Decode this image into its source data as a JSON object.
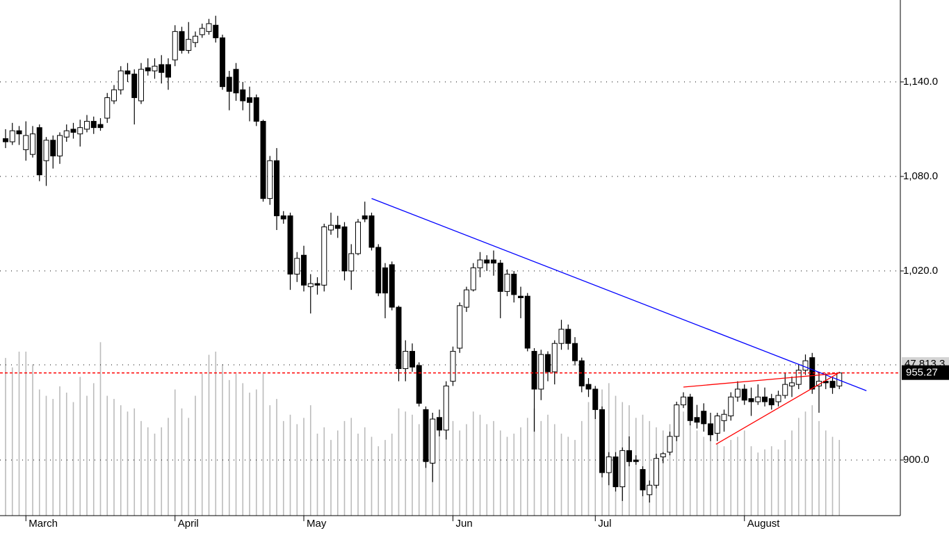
{
  "chart_data": {
    "type": "candlestick",
    "categories": [
      null,
      null,
      null,
      "March",
      null,
      null,
      null,
      null,
      null,
      null,
      null,
      null,
      null,
      null,
      null,
      null,
      null,
      null,
      null,
      null,
      null,
      null,
      null,
      null,
      null,
      "April",
      null,
      null,
      null,
      null,
      null,
      null,
      null,
      null,
      null,
      null,
      null,
      null,
      null,
      null,
      null,
      null,
      null,
      null,
      "May",
      null,
      null,
      null,
      null,
      null,
      null,
      null,
      null,
      null,
      null,
      null,
      null,
      null,
      null,
      null,
      null,
      null,
      null,
      null,
      null,
      null,
      "Jun",
      null,
      null,
      null,
      null,
      null,
      null,
      null,
      null,
      null,
      null,
      null,
      null,
      null,
      null,
      null,
      null,
      null,
      null,
      null,
      null,
      "Jul",
      null,
      null,
      null,
      null,
      null,
      null,
      null,
      null,
      null,
      null,
      null,
      null,
      null,
      null,
      null,
      null,
      null,
      null,
      null,
      null,
      null,
      "August",
      null,
      null,
      null,
      null,
      null,
      null,
      null,
      null,
      null,
      null,
      null,
      null,
      null,
      null
    ],
    "open": [
      1104,
      1102,
      1109,
      1097,
      1094,
      1111,
      1090,
      1103,
      1093,
      1105,
      1110,
      1107,
      1110,
      1115,
      1113,
      1117,
      1128,
      1135,
      1147,
      1145,
      1128,
      1149,
      1147,
      1151,
      1151,
      1154,
      1172,
      1160,
      1165,
      1170,
      1172,
      1176,
      1168,
      1143,
      1148,
      1135,
      1130,
      1130,
      1115,
      1066,
      1090,
      1055,
      1055,
      1018,
      1030,
      1010,
      1012,
      1011,
      1046,
      1049,
      1048,
      1020,
      1031,
      1055,
      1055,
      1035,
      1022,
      1024,
      997,
      958,
      969,
      960,
      932,
      898,
      927,
      919,
      950,
      971,
      997,
      1008,
      1022,
      1027,
      1027,
      1025,
      1007,
      1018,
      1004,
      1004,
      969,
      945,
      967,
      956,
      974,
      983,
      974,
      963,
      948,
      945,
      932,
      892,
      902,
      883,
      906,
      900,
      894,
      878,
      884,
      902,
      905,
      915,
      935,
      940,
      927,
      931,
      923,
      917,
      925,
      928,
      940,
      945,
      939,
      937,
      940,
      939,
      937,
      941,
      947,
      948,
      957,
      965,
      947,
      950,
      950,
      947
    ],
    "high": [
      1110,
      1114,
      1112,
      1115,
      1112,
      1113,
      1105,
      1106,
      1108,
      1113,
      1114,
      1116,
      1119,
      1118,
      1117,
      1133,
      1138,
      1150,
      1152,
      1148,
      1152,
      1155,
      1155,
      1157,
      1155,
      1176,
      1175,
      1178,
      1172,
      1177,
      1180,
      1182,
      1170,
      1147,
      1152,
      1140,
      1137,
      1132,
      1116,
      1093,
      1098,
      1058,
      1057,
      1032,
      1036,
      1018,
      1016,
      1050,
      1057,
      1055,
      1051,
      1037,
      1053,
      1064,
      1057,
      1037,
      1025,
      1026,
      998,
      976,
      974,
      962,
      934,
      930,
      932,
      950,
      972,
      1000,
      1010,
      1025,
      1032,
      1030,
      1033,
      1027,
      1021,
      1020,
      1010,
      1006,
      971,
      970,
      969,
      976,
      989,
      986,
      978,
      965,
      952,
      947,
      934,
      905,
      905,
      908,
      915,
      903,
      896,
      887,
      904,
      905,
      918,
      937,
      943,
      942,
      935,
      936,
      930,
      930,
      932,
      943,
      950,
      948,
      946,
      948,
      946,
      942,
      944,
      955,
      953,
      961,
      967,
      968,
      956,
      955,
      953,
      956
    ],
    "low": [
      1098,
      1100,
      1100,
      1090,
      1092,
      1077,
      1074,
      1085,
      1088,
      1102,
      1104,
      1099,
      1108,
      1107,
      1109,
      1114,
      1126,
      1132,
      1140,
      1113,
      1126,
      1144,
      1142,
      1139,
      1135,
      1150,
      1158,
      1158,
      1162,
      1168,
      1170,
      1165,
      1135,
      1122,
      1128,
      1122,
      1115,
      1112,
      1064,
      1062,
      1046,
      1050,
      1008,
      1013,
      1007,
      993,
      1005,
      1007,
      1043,
      1041,
      1014,
      1008,
      1030,
      1051,
      1033,
      1004,
      990,
      995,
      950,
      950,
      956,
      934,
      895,
      886,
      915,
      913,
      947,
      968,
      994,
      1007,
      1016,
      1020,
      1017,
      990,
      1004,
      1000,
      990,
      969,
      918,
      938,
      950,
      948,
      970,
      970,
      960,
      943,
      940,
      926,
      889,
      884,
      880,
      874,
      896,
      897,
      877,
      873,
      882,
      898,
      903,
      912,
      933,
      922,
      920,
      918,
      912,
      912,
      918,
      925,
      937,
      935,
      928,
      935,
      934,
      932,
      934,
      939,
      940,
      945,
      954,
      942,
      930,
      945,
      942,
      945
    ],
    "close": [
      1102,
      1109,
      1107,
      1106,
      1107,
      1081,
      1103,
      1093,
      1106,
      1109,
      1108,
      1111,
      1115,
      1111,
      1111,
      1130,
      1135,
      1147,
      1145,
      1130,
      1148,
      1147,
      1150,
      1146,
      1143,
      1172,
      1160,
      1167,
      1169,
      1174,
      1177,
      1168,
      1137,
      1134,
      1133,
      1128,
      1127,
      1115,
      1066,
      1090,
      1055,
      1053,
      1018,
      1028,
      1011,
      1012,
      1011,
      1048,
      1049,
      1047,
      1020,
      1031,
      1051,
      1053,
      1035,
      1006,
      1006,
      997,
      958,
      969,
      959,
      936,
      899,
      926,
      919,
      947,
      969,
      998,
      1008,
      1022,
      1027,
      1025,
      1025,
      1007,
      1018,
      1005,
      1003,
      971,
      945,
      967,
      956,
      974,
      983,
      974,
      963,
      947,
      945,
      932,
      892,
      902,
      883,
      906,
      899,
      899,
      881,
      884,
      901,
      904,
      915,
      935,
      940,
      925,
      924,
      923,
      916,
      928,
      929,
      940,
      945,
      938,
      937,
      940,
      937,
      935,
      941,
      948,
      949,
      957,
      963,
      945,
      950,
      949,
      946,
      955.27
    ],
    "volume": [
      50000,
      47000,
      52000,
      52000,
      48000,
      40000,
      38000,
      37000,
      41000,
      39000,
      36000,
      44000,
      38000,
      42000,
      55000,
      38000,
      37000,
      35000,
      33000,
      34000,
      30000,
      28000,
      26000,
      28000,
      31000,
      40000,
      34000,
      31000,
      38000,
      45000,
      51000,
      52000,
      48000,
      43000,
      45000,
      42000,
      39000,
      40000,
      45000,
      35000,
      37000,
      30000,
      32000,
      29000,
      31000,
      35000,
      26000,
      28000,
      24000,
      27000,
      30000,
      31000,
      26000,
      28000,
      25000,
      22000,
      24000,
      26000,
      34000,
      33000,
      32000,
      29000,
      25000,
      24000,
      27000,
      28000,
      30000,
      27000,
      29000,
      33000,
      32000,
      29000,
      30000,
      27000,
      25000,
      26000,
      28000,
      31000,
      34000,
      30000,
      32000,
      29000,
      26000,
      25000,
      24000,
      30000,
      36000,
      35000,
      40000,
      42000,
      38000,
      36000,
      35000,
      31000,
      32000,
      30000,
      28000,
      27000,
      29000,
      34000,
      33000,
      29000,
      27000,
      25000,
      26000,
      23000,
      22000,
      24000,
      25000,
      27000,
      22000,
      20000,
      21000,
      22000,
      21000,
      24000,
      27000,
      31000,
      33000,
      35000,
      30000,
      27000,
      25000,
      24000
    ],
    "ylim": [
      864.7,
      1192
    ],
    "yticks": [
      {
        "value": 900,
        "label": "900.0"
      },
      {
        "value": 1020,
        "label": "1,020.0"
      },
      {
        "value": 1080,
        "label": "1,080.0"
      },
      {
        "value": 1140,
        "label": "1,140.0"
      }
    ],
    "y2lim": [
      0,
      163500
    ],
    "volume_marker": {
      "value": 47813.3,
      "label": "47,813.3"
    },
    "price_marker": {
      "value": 955.27,
      "label": "955.27"
    },
    "trendlines": [
      {
        "color": "#0000ff",
        "x": [
          54,
          127
        ],
        "y": [
          1066,
          944
        ]
      },
      {
        "color": "#ff0000",
        "x": [
          100,
          122.8
        ],
        "y": [
          946.3,
          955
        ]
      },
      {
        "color": "#ff0000",
        "x": [
          104.8,
          122.8
        ],
        "y": [
          910,
          955
        ]
      }
    ],
    "grid": true,
    "up_color": "#ffffff",
    "down_color": "#000000",
    "volume_color": "#bbbbbb",
    "price_marker_color": "#ff0000"
  }
}
